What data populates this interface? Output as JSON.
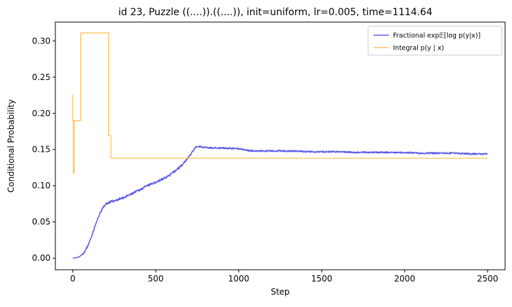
{
  "chart_data": {
    "type": "line",
    "title": "id 23, Puzzle ((....)).((....)), init=uniform, lr=0.005, time=1114.64",
    "xlabel": "Step",
    "ylabel": "Conditional Probability",
    "xlim": [
      -105,
      2605
    ],
    "ylim": [
      -0.016,
      0.326
    ],
    "xticks": [
      0,
      500,
      1000,
      1500,
      2000,
      2500
    ],
    "xtick_labels": [
      "0",
      "500",
      "1000",
      "1500",
      "2000",
      "2500"
    ],
    "yticks": [
      0.0,
      0.05,
      0.1,
      0.15,
      0.2,
      0.25,
      0.3
    ],
    "ytick_labels": [
      "0.00",
      "0.05",
      "0.10",
      "0.15",
      "0.20",
      "0.25",
      "0.30"
    ],
    "grid": false,
    "legend_position": "top-right",
    "series": [
      {
        "name": "Fractional exp𝔼[log p(y|x)]",
        "color": "#5b5be8",
        "noisy": true,
        "x": [
          0,
          20,
          40,
          60,
          80,
          100,
          120,
          140,
          160,
          180,
          200,
          220,
          260,
          300,
          350,
          400,
          450,
          500,
          550,
          600,
          650,
          700,
          740,
          760,
          800,
          850,
          900,
          1000,
          1050,
          1100,
          1200,
          1300,
          1400,
          1500,
          1600,
          1700,
          1800,
          1900,
          2000,
          2100,
          2200,
          2300,
          2400,
          2500
        ],
        "y": [
          0.0,
          0.0005,
          0.002,
          0.006,
          0.012,
          0.022,
          0.035,
          0.048,
          0.06,
          0.069,
          0.075,
          0.077,
          0.08,
          0.083,
          0.088,
          0.094,
          0.1,
          0.105,
          0.11,
          0.117,
          0.127,
          0.14,
          0.153,
          0.154,
          0.153,
          0.152,
          0.152,
          0.151,
          0.149,
          0.148,
          0.148,
          0.148,
          0.147,
          0.147,
          0.147,
          0.146,
          0.146,
          0.146,
          0.146,
          0.145,
          0.145,
          0.145,
          0.144,
          0.144
        ]
      },
      {
        "name": "Integral p(y | x)",
        "color": "#ffc766",
        "noisy": false,
        "x": [
          0,
          0,
          3,
          3,
          8,
          8,
          10,
          10,
          48,
          48,
          215,
          215,
          230,
          230,
          2500
        ],
        "y": [
          0.226,
          0.19,
          0.19,
          0.117,
          0.117,
          0.19,
          0.19,
          0.19,
          0.19,
          0.311,
          0.311,
          0.169,
          0.169,
          0.138,
          0.138
        ]
      }
    ]
  }
}
